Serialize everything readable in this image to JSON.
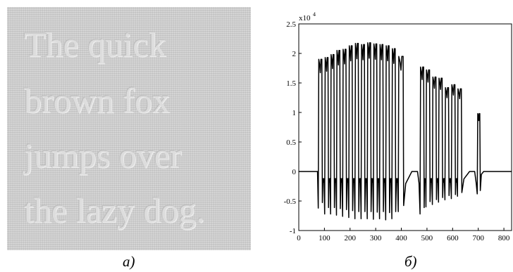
{
  "panel_a": {
    "lines": [
      "The quick",
      "brown fox",
      "jumps over",
      "the lazy dog."
    ],
    "caption": "a)"
  },
  "panel_b": {
    "caption": "б)"
  },
  "chart_data": {
    "type": "line",
    "title": "",
    "xlabel": "",
    "ylabel": "",
    "y_multiplier_label": "x10",
    "y_multiplier_exponent": "4",
    "xlim": [
      0,
      830
    ],
    "ylim": [
      -1,
      2.5
    ],
    "x_ticks": [
      0,
      100,
      200,
      300,
      400,
      500,
      600,
      700,
      800
    ],
    "y_ticks": [
      -1,
      -0.5,
      0,
      0.5,
      1,
      1.5,
      2,
      2.5
    ],
    "y_tick_labels": [
      "-1",
      "-0.5",
      "0",
      "0.5",
      "1",
      "1.5",
      "2",
      "2.5"
    ],
    "line_color": "#000000",
    "bars": [
      {
        "x1": 78,
        "x2": 90,
        "top": 1.9,
        "bottom": -0.62
      },
      {
        "x1": 103,
        "x2": 114,
        "top": 1.93,
        "bottom": -0.72
      },
      {
        "x1": 126,
        "x2": 137,
        "top": 1.98,
        "bottom": -0.72
      },
      {
        "x1": 149,
        "x2": 160,
        "top": 2.05,
        "bottom": -0.74
      },
      {
        "x1": 173,
        "x2": 184,
        "top": 2.07,
        "bottom": -0.76
      },
      {
        "x1": 197,
        "x2": 208,
        "top": 2.13,
        "bottom": -0.78
      },
      {
        "x1": 221,
        "x2": 232,
        "top": 2.17,
        "bottom": -0.8
      },
      {
        "x1": 245,
        "x2": 256,
        "top": 2.15,
        "bottom": -0.8
      },
      {
        "x1": 269,
        "x2": 280,
        "top": 2.18,
        "bottom": -0.8
      },
      {
        "x1": 293,
        "x2": 304,
        "top": 2.16,
        "bottom": -0.81
      },
      {
        "x1": 317,
        "x2": 328,
        "top": 2.15,
        "bottom": -0.8
      },
      {
        "x1": 341,
        "x2": 352,
        "top": 2.13,
        "bottom": -0.82
      },
      {
        "x1": 365,
        "x2": 376,
        "top": 2.08,
        "bottom": -0.8
      },
      {
        "x1": 390,
        "x2": 407,
        "top": 1.95,
        "bottom": -0.68
      },
      {
        "x1": 475,
        "x2": 487,
        "top": 1.77,
        "bottom": -0.72
      },
      {
        "x1": 498,
        "x2": 510,
        "top": 1.72,
        "bottom": -0.6
      },
      {
        "x1": 523,
        "x2": 535,
        "top": 1.6,
        "bottom": -0.56
      },
      {
        "x1": 547,
        "x2": 559,
        "top": 1.58,
        "bottom": -0.52
      },
      {
        "x1": 572,
        "x2": 584,
        "top": 1.42,
        "bottom": -0.48
      },
      {
        "x1": 597,
        "x2": 609,
        "top": 1.47,
        "bottom": -0.46
      },
      {
        "x1": 621,
        "x2": 634,
        "top": 1.4,
        "bottom": -0.42
      },
      {
        "x1": 698,
        "x2": 706,
        "top": 0.98,
        "bottom": -0.38
      }
    ]
  }
}
